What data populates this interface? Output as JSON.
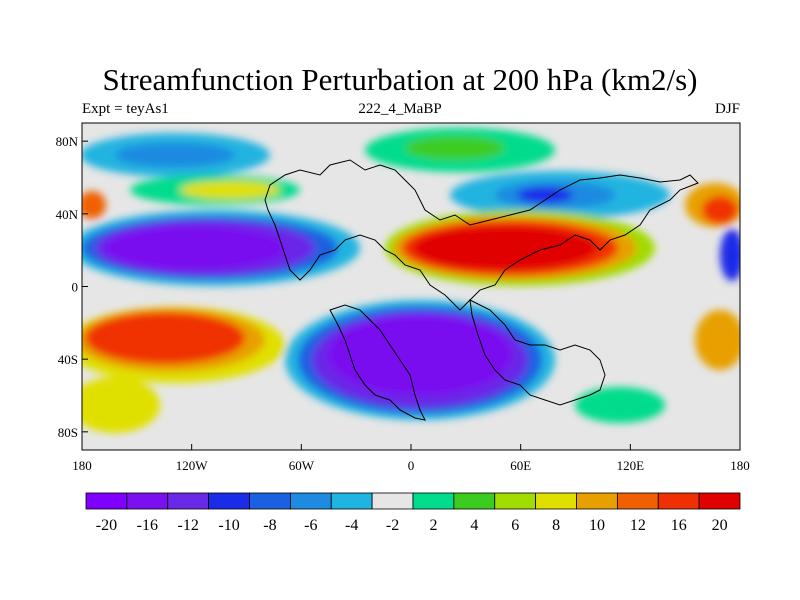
{
  "title": "Streamfunction Perturbation at 200 hPa (km2/s)",
  "subtitle_left": "Expt = teyAs1",
  "subtitle_center": "222_4_MaBP",
  "subtitle_right": "DJF",
  "y_ticks": [
    {
      "label": "80N",
      "lat": 80
    },
    {
      "label": "40N",
      "lat": 40
    },
    {
      "label": "0",
      "lat": 0
    },
    {
      "label": "40S",
      "lat": -40
    },
    {
      "label": "80S",
      "lat": -80
    }
  ],
  "x_ticks": [
    {
      "label": "180",
      "lon": -180
    },
    {
      "label": "120W",
      "lon": -120
    },
    {
      "label": "60W",
      "lon": -60
    },
    {
      "label": "0",
      "lon": 0
    },
    {
      "label": "60E",
      "lon": 60
    },
    {
      "label": "120E",
      "lon": 120
    },
    {
      "label": "180",
      "lon": 180
    }
  ],
  "colorbar": {
    "colors": [
      "#7f00ff",
      "#7a10f0",
      "#6a28e8",
      "#1a2ce8",
      "#1a60e0",
      "#1e8ae0",
      "#20b4e0",
      "#e6e6e6",
      "#00dc8c",
      "#3ccc20",
      "#a0dc00",
      "#e0e000",
      "#e8a000",
      "#f06000",
      "#f03000",
      "#e00000"
    ],
    "labels": [
      "-20",
      "-16",
      "-12",
      "-10",
      "-8",
      "-6",
      "-4",
      "-2",
      "2",
      "4",
      "6",
      "8",
      "10",
      "12",
      "16",
      "20"
    ]
  }
}
